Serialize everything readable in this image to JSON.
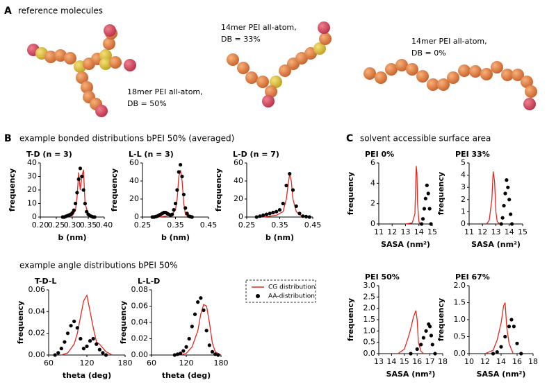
{
  "panels": {
    "a_letter": "A",
    "a_heading": "reference molecules",
    "b_letter": "B",
    "b_heading": "example bonded distributions bPEI 50% (averaged)",
    "b_heading2": "example angle distributions bPEI 50%",
    "c_letter": "C",
    "c_heading": "solvent accessible surface area"
  },
  "molecules": [
    {
      "name": "18mer PEI all-atom,",
      "db": "DB = 50%"
    },
    {
      "name": "14mer PEI all-atom,",
      "db": "DB = 33%"
    },
    {
      "name": "14mer PEI all-atom,",
      "db": "DB = 0%"
    }
  ],
  "legend": [
    {
      "label": "CG distribution",
      "color": "#e8261f"
    },
    {
      "label": "AA-distribution",
      "color": "#000000"
    }
  ],
  "chart_data": [
    {
      "type": "line",
      "title": "T-D (n = 3)",
      "xlabel": "b (nm)",
      "ylabel": "frequency",
      "xlim": [
        0.2,
        0.4
      ],
      "xticks": [
        {
          "value": 0.2,
          "label": "0.20"
        },
        0.25,
        {
          "value": 0.3,
          "label": "0.30"
        },
        0.35,
        {
          "value": 0.4,
          "label": "0.40"
        }
      ],
      "ylim": [
        0,
        40
      ],
      "yticks": [
        0,
        10,
        20,
        30,
        40
      ],
      "series": [
        {
          "color": "#e8261f",
          "x": [
            0.28,
            0.3,
            0.31,
            0.315,
            0.32,
            0.325,
            0.33,
            0.335,
            0.34,
            0.35,
            0.36
          ],
          "values": [
            0,
            1,
            5,
            15,
            33,
            20,
            30,
            35,
            10,
            2,
            0
          ]
        },
        {
          "color": "#000000",
          "x": [
            0.27,
            0.275,
            0.28,
            0.285,
            0.29,
            0.295,
            0.3,
            0.305,
            0.31,
            0.315,
            0.32,
            0.325,
            0.33,
            0.335,
            0.34,
            0.345,
            0.35,
            0.355,
            0.36,
            0.365,
            0.37
          ],
          "values": [
            0,
            0,
            0.5,
            1,
            1.5,
            2,
            3,
            5,
            10,
            18,
            28,
            36,
            30,
            20,
            10,
            4,
            2,
            1,
            0.5,
            0,
            0
          ]
        }
      ]
    },
    {
      "type": "line",
      "title": "L-L (n = 3)",
      "xlabel": "b (nm)",
      "ylabel": "frequency",
      "xlim": [
        0.25,
        0.45
      ],
      "xticks": [
        0.25,
        0.35,
        0.45
      ],
      "ylim": [
        0,
        60
      ],
      "yticks": [
        0,
        20,
        40,
        60
      ],
      "series": [
        {
          "color": "#e8261f",
          "x": [
            0.3,
            0.32,
            0.34,
            0.35,
            0.355,
            0.36,
            0.365,
            0.37,
            0.375,
            0.38,
            0.39
          ],
          "values": [
            0,
            1,
            3,
            8,
            20,
            45,
            52,
            40,
            15,
            3,
            0
          ]
        },
        {
          "color": "#000000",
          "x": [
            0.28,
            0.285,
            0.29,
            0.295,
            0.3,
            0.305,
            0.31,
            0.315,
            0.32,
            0.325,
            0.33,
            0.335,
            0.34,
            0.345,
            0.35,
            0.355,
            0.36,
            0.365,
            0.37,
            0.375,
            0.38,
            0.385,
            0.39,
            0.395,
            0.4
          ],
          "values": [
            0,
            0,
            0.5,
            1,
            2,
            3,
            4,
            5,
            5,
            4,
            3,
            2,
            3,
            8,
            15,
            30,
            50,
            58,
            45,
            25,
            10,
            4,
            1,
            0.5,
            0
          ]
        }
      ]
    },
    {
      "type": "line",
      "title": "L-D (n = 7)",
      "xlabel": "b (nm)",
      "ylabel": "frequency",
      "xlim": [
        0.25,
        0.45
      ],
      "xticks": [
        0.25,
        0.35,
        0.45
      ],
      "ylim": [
        0,
        60
      ],
      "yticks": [
        0,
        20,
        40,
        60
      ],
      "series": [
        {
          "color": "#e8261f",
          "x": [
            0.3,
            0.32,
            0.34,
            0.36,
            0.37,
            0.375,
            0.38,
            0.385,
            0.39,
            0.4,
            0.42
          ],
          "values": [
            0,
            1,
            2,
            6,
            20,
            35,
            48,
            40,
            20,
            6,
            0
          ]
        },
        {
          "color": "#000000",
          "x": [
            0.28,
            0.29,
            0.3,
            0.31,
            0.32,
            0.33,
            0.34,
            0.35,
            0.36,
            0.37,
            0.38,
            0.39,
            0.4,
            0.41,
            0.42,
            0.43,
            0.44
          ],
          "values": [
            0,
            1,
            2,
            3,
            4,
            5,
            6,
            8,
            15,
            35,
            48,
            30,
            12,
            4,
            1,
            0.5,
            0
          ]
        }
      ]
    },
    {
      "type": "line",
      "title": "T-D-L",
      "xlabel": "theta (deg)",
      "ylabel": "frequency",
      "xlim": [
        60,
        180
      ],
      "xticks": [
        60,
        120,
        180
      ],
      "ylim": [
        0,
        0.06
      ],
      "yticks": [
        {
          "value": 0,
          "label": "0.00"
        },
        0.02,
        0.04,
        0.06
      ],
      "series": [
        {
          "color": "#e8261f",
          "x": [
            80,
            90,
            100,
            105,
            110,
            115,
            120,
            125,
            130,
            135,
            140,
            150,
            160
          ],
          "values": [
            0,
            0.002,
            0.01,
            0.02,
            0.035,
            0.05,
            0.055,
            0.04,
            0.025,
            0.012,
            0.01,
            0.003,
            0
          ]
        },
        {
          "color": "#000000",
          "x": [
            70,
            75,
            80,
            85,
            90,
            95,
            100,
            105,
            110,
            115,
            120,
            125,
            130,
            135,
            140,
            145,
            150
          ],
          "values": [
            0,
            0.002,
            0.006,
            0.012,
            0.02,
            0.027,
            0.031,
            0.025,
            0.015,
            0.006,
            0.008,
            0.013,
            0.015,
            0.01,
            0.005,
            0.002,
            0
          ]
        }
      ]
    },
    {
      "type": "line",
      "title": "L-L-D",
      "xlabel": "theta (deg)",
      "ylabel": "frequency",
      "xlim": [
        60,
        180
      ],
      "xticks": [
        60,
        120,
        180
      ],
      "ylim": [
        0,
        0.08
      ],
      "yticks": [
        {
          "value": 0,
          "label": "0.00"
        },
        0.02,
        0.04,
        0.06,
        0.08
      ],
      "series": [
        {
          "color": "#e8261f",
          "x": [
            110,
            120,
            130,
            140,
            145,
            150,
            155,
            160,
            165,
            170,
            180
          ],
          "values": [
            0,
            0.002,
            0.01,
            0.03,
            0.05,
            0.062,
            0.06,
            0.04,
            0.015,
            0.004,
            0
          ]
        },
        {
          "color": "#000000",
          "x": [
            100,
            105,
            110,
            115,
            120,
            125,
            130,
            135,
            140,
            145,
            150,
            155,
            160,
            165,
            170,
            175
          ],
          "values": [
            0,
            0.001,
            0.002,
            0.005,
            0.01,
            0.02,
            0.035,
            0.05,
            0.065,
            0.07,
            0.055,
            0.03,
            0.012,
            0.004,
            0.001,
            0
          ]
        }
      ]
    },
    {
      "type": "line",
      "title": "PEI 0%",
      "xlabel": "SASA (nm²)",
      "ylabel": "frequency",
      "xlim": [
        11,
        15
      ],
      "xticks": [
        11,
        12,
        13,
        14,
        15
      ],
      "ylim": [
        0,
        6
      ],
      "yticks": [
        0,
        2,
        4,
        6
      ],
      "series": [
        {
          "color": "#e8261f",
          "x": [
            13.0,
            13.5,
            13.7,
            13.8,
            13.85,
            13.9,
            14.0,
            14.1
          ],
          "values": [
            0,
            0.1,
            1,
            5.7,
            5,
            2,
            0.2,
            0
          ]
        },
        {
          "color": "#000000",
          "x": [
            14.2,
            14.3,
            14.4,
            14.5,
            14.6,
            14.7,
            14.8,
            14.9
          ],
          "values": [
            0,
            0.5,
            1.5,
            2.5,
            3.8,
            3,
            1.5,
            0
          ]
        }
      ]
    },
    {
      "type": "line",
      "title": "PEI 33%",
      "xlabel": "SASA (nm²)",
      "ylabel": "frequency",
      "xlim": [
        11,
        15
      ],
      "xticks": [
        11,
        12,
        13,
        14,
        15
      ],
      "ylim": [
        0,
        5
      ],
      "yticks": [
        0,
        1,
        2,
        3,
        4,
        5
      ],
      "series": [
        {
          "color": "#e8261f",
          "x": [
            12.3,
            12.5,
            12.7,
            12.8,
            12.9,
            13.0,
            13.1,
            13.3
          ],
          "values": [
            0,
            0.3,
            2,
            4.3,
            3.5,
            1,
            0.2,
            0
          ]
        },
        {
          "color": "#000000",
          "x": [
            13.4,
            13.5,
            13.6,
            13.7,
            13.8,
            13.9,
            14.0,
            14.1,
            14.2
          ],
          "values": [
            0,
            0.5,
            1.5,
            2.5,
            3.6,
            3,
            2,
            0.8,
            0
          ]
        }
      ]
    },
    {
      "type": "line",
      "title": "PEI 50%",
      "xlabel": "SASA (nm²)",
      "ylabel": "frequency",
      "xlim": [
        13,
        18
      ],
      "xticks": [
        13,
        14,
        15,
        16,
        17,
        18
      ],
      "ylim": [
        0,
        3
      ],
      "yticks": [
        {
          "value": 0,
          "label": "0.0"
        },
        0.5,
        {
          "value": 1,
          "label": "1.0"
        },
        1.5,
        {
          "value": 2,
          "label": "2.0"
        },
        2.5,
        {
          "value": 3,
          "label": "3.0"
        }
      ],
      "series": [
        {
          "color": "#e8261f",
          "x": [
            14.5,
            15,
            15.3,
            15.5,
            15.7,
            15.9,
            16.0,
            16.1,
            16.3,
            16.5
          ],
          "values": [
            0,
            0.2,
            0.7,
            1.1,
            1.6,
            1.9,
            1.5,
            0.5,
            0.1,
            0
          ]
        },
        {
          "color": "#000000",
          "x": [
            15.5,
            16,
            16.3,
            16.5,
            16.7,
            16.9,
            17.0,
            17.1,
            17.2,
            17.4
          ],
          "values": [
            0,
            0.2,
            0.4,
            0.7,
            1.0,
            1.3,
            1.2,
            0.8,
            0.4,
            0
          ]
        }
      ]
    },
    {
      "type": "line",
      "title": "PEI 67%",
      "xlabel": "SASA (nm²)",
      "ylabel": "frequency",
      "xlim": [
        10,
        18
      ],
      "xticks": [
        10,
        12,
        14,
        16,
        18
      ],
      "ylim": [
        0,
        2
      ],
      "yticks": [
        {
          "value": 0,
          "label": "0.0"
        },
        0.5,
        {
          "value": 1,
          "label": "1.0"
        },
        1.5,
        {
          "value": 2,
          "label": "2.0"
        }
      ],
      "series": [
        {
          "color": "#e8261f",
          "x": [
            12,
            13,
            13.5,
            14,
            14.3,
            14.5,
            14.7,
            15,
            15.5
          ],
          "values": [
            0,
            0.1,
            0.4,
            0.9,
            1.4,
            1.5,
            0.8,
            0.3,
            0
          ]
        },
        {
          "color": "#000000",
          "x": [
            13,
            13.5,
            14,
            14.5,
            15,
            15.3,
            15.6,
            16,
            16.5
          ],
          "values": [
            0,
            0.05,
            0.2,
            0.5,
            0.8,
            1.0,
            0.8,
            0.3,
            0
          ]
        }
      ]
    }
  ]
}
